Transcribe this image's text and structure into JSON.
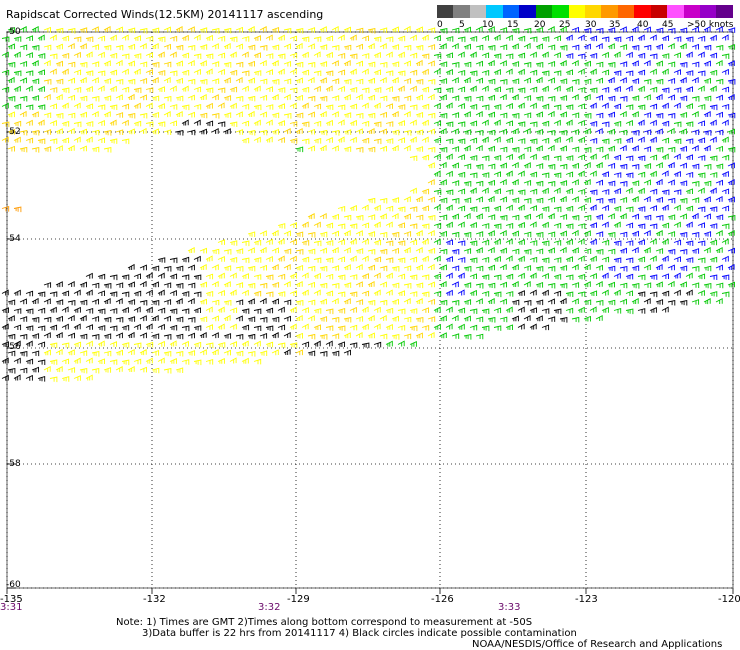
{
  "title": "Rapidscat Corrected Winds(12.5KM) 20141117 ascending",
  "legend": {
    "colors": [
      "#404040",
      "#808080",
      "#c0c0c0",
      "#00c8ff",
      "#0064ff",
      "#0000c8",
      "#00a000",
      "#00e000",
      "#ffff00",
      "#ffd700",
      "#ff9900",
      "#ff6600",
      "#ff0000",
      "#c80000",
      "#ff50ff",
      "#c800c8",
      "#9600c8",
      "#64008c"
    ],
    "labels": [
      "0",
      "5",
      "10",
      "15",
      "20",
      "25",
      "30",
      "35",
      "40",
      "45",
      ">50 knots"
    ]
  },
  "map": {
    "lat_labels": [
      "-50",
      "-52",
      "-54",
      "-56",
      "-58",
      "-60"
    ],
    "lon_labels": [
      "-135",
      "-132",
      "-129",
      "-126",
      "-123",
      "-120"
    ],
    "times": [
      "3:31",
      "3:32",
      "3:33"
    ]
  },
  "notes": {
    "line1": "Note: 1) Times are GMT 2)Times along bottom correspond to measurement at -50S",
    "line2": "3)Data buffer is 22 hrs from 20141117 4) Black circles indicate possible contamination",
    "credit": "NOAA/NESDIS/Office of Research and Applications"
  },
  "wind_colors": {
    "black": "#000000",
    "yellow": "#ffff00",
    "gold": "#ffd700",
    "orange": "#ff9900",
    "green": "#00c800",
    "blue": "#0000ff"
  }
}
